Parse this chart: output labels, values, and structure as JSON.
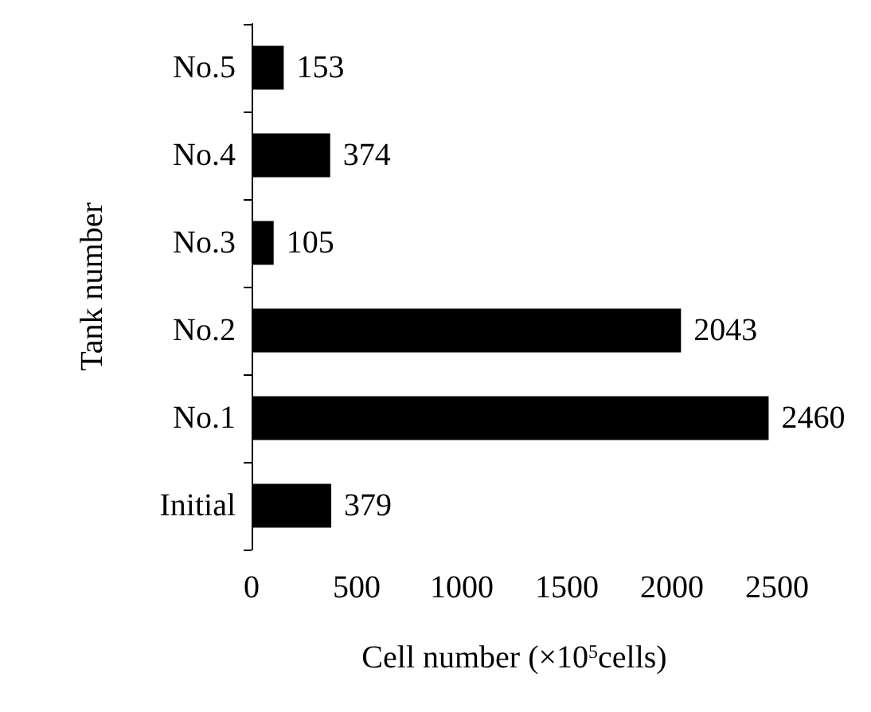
{
  "chart_data": {
    "type": "bar",
    "orientation": "horizontal",
    "xlabel": "Cell number (×10$^{5}$cells)",
    "ylabel": "Tank number",
    "categories": [
      "No.5",
      "No.4",
      "No.3",
      "No.2",
      "No.1",
      "Initial"
    ],
    "values": [
      153,
      374,
      105,
      2043,
      2460,
      379
    ],
    "color": "#000000",
    "data_labels": true,
    "xlim": [
      0,
      2500
    ],
    "xticks": [
      0,
      500,
      1000,
      1500,
      2000,
      2500
    ]
  }
}
